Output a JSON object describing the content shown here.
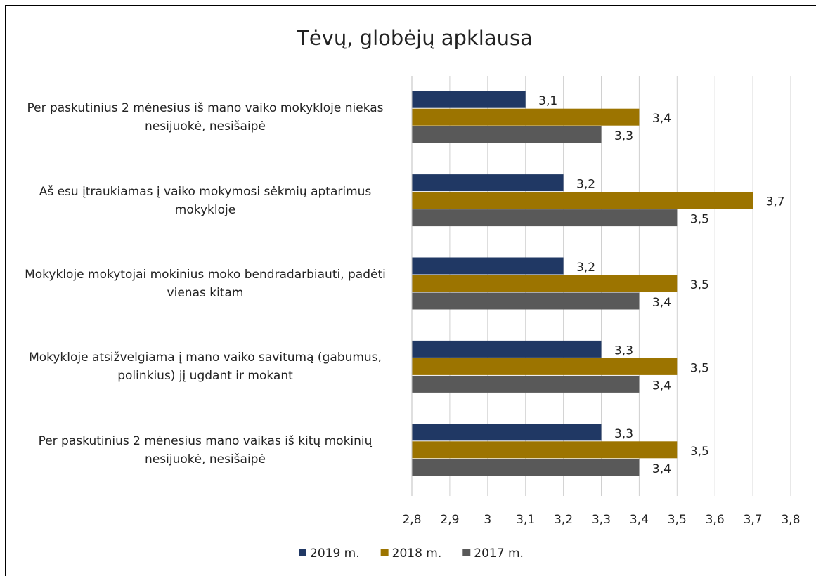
{
  "chart_data": {
    "type": "hbar",
    "title": "Tėvų, globėjų apklausa",
    "categories": [
      "Per paskutinius 2 mėnesius iš mano vaiko mokykloje niekas nesijuokė, nesišaipė",
      "Aš esu įtraukiamas į vaiko mokymosi sėkmių aptarimus mokykloje",
      "Mokykloje mokytojai mokinius moko bendradarbiauti, padėti vienas kitam",
      "Mokykloje atsižvelgiama į mano vaiko savitumą (gabumus, polinkius) jį ugdant ir mokant",
      "Per paskutinius 2 mėnesius mano vaikas iš kitų mokinių nesijuokė, nesišaipė"
    ],
    "series": [
      {
        "name": "2019 m.",
        "color": "#203864",
        "values": [
          3.1,
          3.2,
          3.2,
          3.3,
          3.3
        ],
        "value_labels": [
          "3,1",
          "3,2",
          "3,2",
          "3,3",
          "3,3"
        ]
      },
      {
        "name": "2018 m.",
        "color": "#9c7400",
        "values": [
          3.4,
          3.7,
          3.5,
          3.5,
          3.5
        ],
        "value_labels": [
          "3,4",
          "3,7",
          "3,5",
          "3,5",
          "3,5"
        ]
      },
      {
        "name": "2017 m.",
        "color": "#595959",
        "values": [
          3.3,
          3.5,
          3.4,
          3.4,
          3.4
        ],
        "value_labels": [
          "3,3",
          "3,5",
          "3,4",
          "3,4",
          "3,4"
        ]
      }
    ],
    "xlim": [
      2.8,
      3.8
    ],
    "xticks": [
      {
        "value": 2.8,
        "label": "2,8"
      },
      {
        "value": 2.9,
        "label": "2,9"
      },
      3,
      {
        "value": 3.1,
        "label": "3,1"
      },
      {
        "value": 3.2,
        "label": "3,2"
      },
      {
        "value": 3.3,
        "label": "3,3"
      },
      {
        "value": 3.4,
        "label": "3,4"
      },
      {
        "value": 3.5,
        "label": "3,5"
      },
      {
        "value": 3.6,
        "label": "3,6"
      },
      {
        "value": 3.7,
        "label": "3,7"
      },
      {
        "value": 3.8,
        "label": "3,8"
      }
    ],
    "grid": true,
    "legend": "bottom"
  }
}
